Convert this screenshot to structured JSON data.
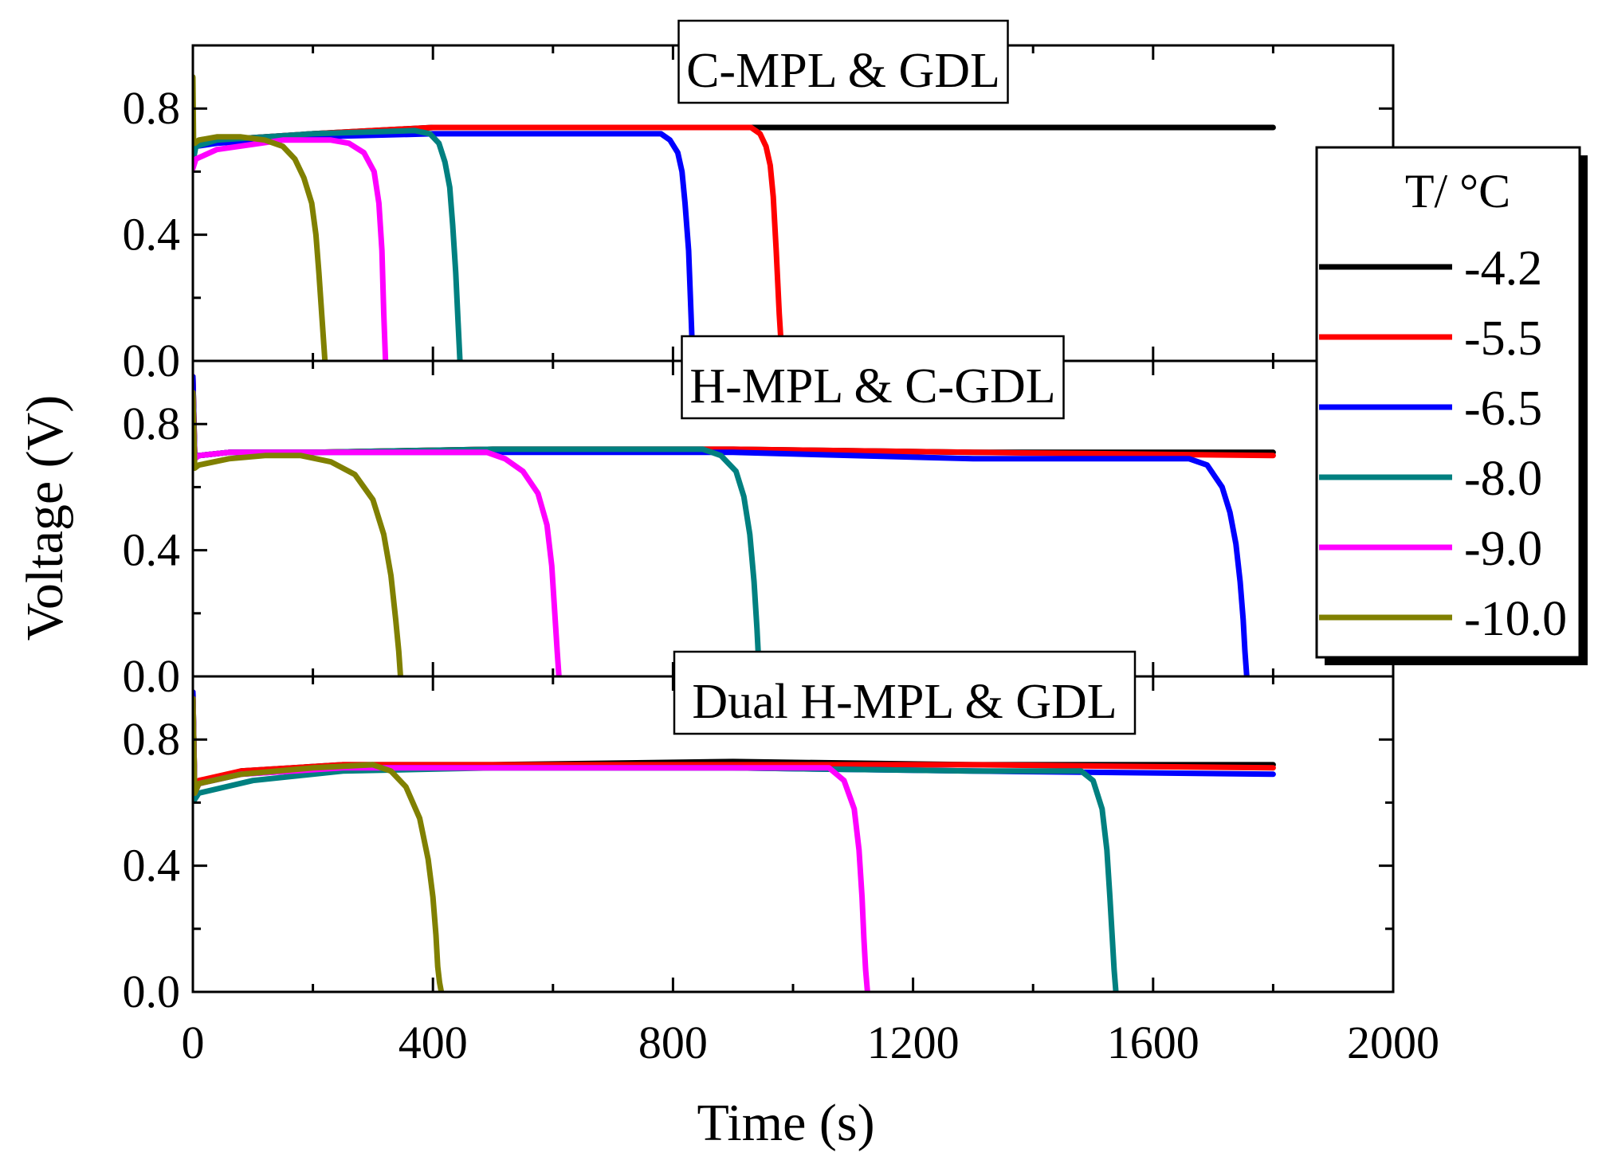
{
  "chart_data": {
    "type": "line",
    "xlabel": "Time (s)",
    "ylabel": "Voltage (V)",
    "xlim": [
      0,
      2000
    ],
    "ylim": [
      0.0,
      1.0
    ],
    "x_ticks": [
      0,
      400,
      800,
      1200,
      1600,
      2000
    ],
    "x_tick_labels": [
      "0",
      "400",
      "800",
      "1200",
      "1600",
      "2000"
    ],
    "y_ticks": [
      0.0,
      0.4,
      0.8
    ],
    "y_tick_labels": [
      "0.0",
      "0.4",
      "0.8"
    ],
    "legend": {
      "title": "T/ °C",
      "placement": "right",
      "entries": [
        {
          "name": "-4.2",
          "color": "#000000"
        },
        {
          "name": "-5.5",
          "color": "#ff0000"
        },
        {
          "name": "-6.5",
          "color": "#0000ff"
        },
        {
          "name": "-8.0",
          "color": "#008080"
        },
        {
          "name": "-9.0",
          "color": "#ff00ff"
        },
        {
          "name": "-10.0",
          "color": "#808000"
        }
      ]
    },
    "panels": [
      {
        "title": "C-MPL & GDL",
        "series": [
          {
            "name": "-4.2",
            "x": [
              0,
              5,
              40,
              200,
              400,
              900,
              1200,
              1800
            ],
            "y": [
              0.65,
              0.69,
              0.7,
              0.72,
              0.74,
              0.74,
              0.74,
              0.74
            ]
          },
          {
            "name": "-5.5",
            "x": [
              0,
              5,
              40,
              200,
              400,
              930,
              945,
              955,
              962,
              967,
              972,
              977,
              982
            ],
            "y": [
              0.65,
              0.68,
              0.7,
              0.72,
              0.74,
              0.74,
              0.72,
              0.68,
              0.62,
              0.52,
              0.35,
              0.15,
              0.0
            ]
          },
          {
            "name": "-6.5",
            "x": [
              0,
              5,
              40,
              200,
              400,
              780,
              795,
              808,
              815,
              820,
              826,
              830,
              833
            ],
            "y": [
              0.65,
              0.68,
              0.69,
              0.71,
              0.72,
              0.72,
              0.7,
              0.66,
              0.6,
              0.5,
              0.35,
              0.15,
              0.0
            ]
          },
          {
            "name": "-8.0",
            "x": [
              0,
              5,
              40,
              200,
              370,
              395,
              410,
              420,
              428,
              433,
              438,
              442,
              445
            ],
            "y": [
              0.63,
              0.68,
              0.7,
              0.72,
              0.73,
              0.72,
              0.69,
              0.63,
              0.55,
              0.43,
              0.28,
              0.12,
              0.0
            ]
          },
          {
            "name": "-9.0",
            "x": [
              0,
              5,
              40,
              150,
              230,
              260,
              285,
              302,
              310,
              315,
              318,
              321
            ],
            "y": [
              0.61,
              0.64,
              0.67,
              0.7,
              0.7,
              0.69,
              0.66,
              0.6,
              0.5,
              0.35,
              0.15,
              0.0
            ]
          },
          {
            "name": "-10.0",
            "x": [
              0,
              1,
              3,
              10,
              40,
              80,
              120,
              150,
              170,
              185,
              198,
              205,
              210,
              215,
              220
            ],
            "y": [
              0.9,
              0.7,
              0.69,
              0.7,
              0.71,
              0.71,
              0.7,
              0.68,
              0.64,
              0.58,
              0.5,
              0.4,
              0.28,
              0.14,
              0.0
            ]
          }
        ]
      },
      {
        "title": "H-MPL & C-GDL",
        "series": [
          {
            "name": "-4.2",
            "x": [
              0,
              3,
              10,
              60,
              200,
              500,
              900,
              1300,
              1800
            ],
            "y": [
              0.95,
              0.7,
              0.7,
              0.71,
              0.71,
              0.72,
              0.72,
              0.71,
              0.71
            ]
          },
          {
            "name": "-5.5",
            "x": [
              0,
              3,
              10,
              60,
              200,
              500,
              900,
              1300,
              1800
            ],
            "y": [
              0.95,
              0.7,
              0.7,
              0.71,
              0.71,
              0.72,
              0.72,
              0.71,
              0.7
            ]
          },
          {
            "name": "-6.5",
            "x": [
              0,
              3,
              10,
              60,
              200,
              500,
              900,
              1300,
              1660,
              1690,
              1715,
              1728,
              1738,
              1745,
              1750,
              1753,
              1756
            ],
            "y": [
              0.95,
              0.7,
              0.7,
              0.71,
              0.71,
              0.71,
              0.71,
              0.69,
              0.69,
              0.67,
              0.6,
              0.52,
              0.42,
              0.3,
              0.18,
              0.08,
              0.0
            ]
          },
          {
            "name": "-8.0",
            "x": [
              0,
              3,
              10,
              60,
              200,
              500,
              850,
              880,
              905,
              918,
              928,
              935,
              940,
              944
            ],
            "y": [
              0.9,
              0.69,
              0.7,
              0.71,
              0.71,
              0.72,
              0.72,
              0.7,
              0.65,
              0.57,
              0.45,
              0.3,
              0.15,
              0.0
            ]
          },
          {
            "name": "-9.0",
            "x": [
              0,
              3,
              10,
              60,
              200,
              490,
              520,
              550,
              575,
              590,
              598,
              603,
              607,
              610
            ],
            "y": [
              0.9,
              0.69,
              0.7,
              0.71,
              0.71,
              0.71,
              0.69,
              0.65,
              0.58,
              0.48,
              0.35,
              0.2,
              0.08,
              0.0
            ]
          },
          {
            "name": "-10.0",
            "x": [
              0,
              3,
              10,
              60,
              120,
              180,
              230,
              270,
              300,
              318,
              330,
              338,
              343,
              346
            ],
            "y": [
              0.9,
              0.66,
              0.67,
              0.69,
              0.7,
              0.7,
              0.68,
              0.64,
              0.56,
              0.45,
              0.32,
              0.18,
              0.08,
              0.0
            ]
          }
        ]
      },
      {
        "title": "Dual H-MPL & GDL",
        "series": [
          {
            "name": "-4.2",
            "x": [
              0,
              3,
              10,
              80,
              250,
              500,
              900,
              1300,
              1800
            ],
            "y": [
              0.95,
              0.64,
              0.66,
              0.7,
              0.72,
              0.72,
              0.73,
              0.72,
              0.72
            ]
          },
          {
            "name": "-5.5",
            "x": [
              0,
              3,
              10,
              80,
              250,
              500,
              900,
              1300,
              1800
            ],
            "y": [
              0.95,
              0.64,
              0.67,
              0.7,
              0.72,
              0.72,
              0.72,
              0.72,
              0.71
            ]
          },
          {
            "name": "-6.5",
            "x": [
              0,
              3,
              10,
              80,
              250,
              500,
              900,
              1300,
              1800
            ],
            "y": [
              0.95,
              0.63,
              0.66,
              0.69,
              0.71,
              0.71,
              0.71,
              0.7,
              0.69
            ]
          },
          {
            "name": "-8.0",
            "x": [
              0,
              3,
              10,
              100,
              250,
              500,
              900,
              1300,
              1480,
              1500,
              1515,
              1523,
              1528,
              1532,
              1535,
              1538
            ],
            "y": [
              0.93,
              0.61,
              0.63,
              0.67,
              0.7,
              0.71,
              0.71,
              0.7,
              0.7,
              0.67,
              0.58,
              0.45,
              0.3,
              0.17,
              0.07,
              0.0
            ]
          },
          {
            "name": "-9.0",
            "x": [
              0,
              3,
              10,
              80,
              250,
              500,
              900,
              1060,
              1085,
              1102,
              1110,
              1115,
              1118,
              1121,
              1124
            ],
            "y": [
              0.93,
              0.63,
              0.66,
              0.69,
              0.71,
              0.71,
              0.71,
              0.71,
              0.67,
              0.58,
              0.45,
              0.3,
              0.17,
              0.07,
              0.0
            ]
          },
          {
            "name": "-10.0",
            "x": [
              0,
              3,
              10,
              80,
              200,
              300,
              330,
              355,
              378,
              392,
              400,
              405,
              408,
              411,
              414
            ],
            "y": [
              0.93,
              0.63,
              0.66,
              0.69,
              0.71,
              0.72,
              0.7,
              0.65,
              0.55,
              0.42,
              0.3,
              0.18,
              0.08,
              0.03,
              0.0
            ]
          }
        ]
      }
    ]
  }
}
